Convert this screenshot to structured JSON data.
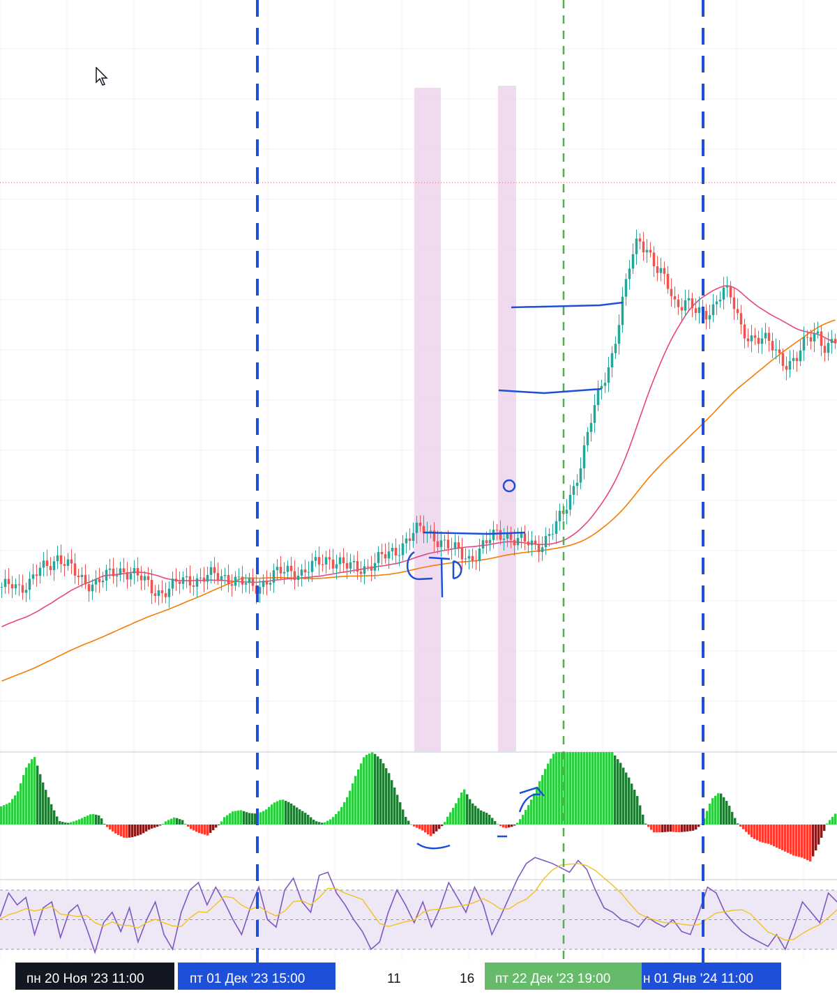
{
  "chart_data": {
    "type": "candlestick",
    "panes": [
      "price",
      "histogram",
      "rsi"
    ],
    "x_axis": {
      "time_labels": [
        {
          "text": "пн 20 Ноя '23    11:00",
          "style": "dark"
        },
        {
          "text": "пт 01 Дек '23    15:00",
          "style": "blue"
        },
        {
          "text": "пт 22 Дек '23    19:00",
          "style": "green"
        },
        {
          "text": "н 01 Янв '24    11:00",
          "style": "blue"
        }
      ],
      "ticks": [
        "11",
        "16"
      ]
    },
    "price_series": {
      "close_shape": [
        0.34,
        0.4,
        0.37,
        0.38,
        0.47,
        0.52,
        0.56,
        0.5,
        0.44,
        0.4,
        0.39,
        0.42,
        0.46,
        0.48,
        0.45,
        0.41,
        0.36,
        0.33,
        0.35,
        0.4,
        0.42,
        0.41,
        0.43,
        0.44,
        0.43,
        0.41,
        0.38,
        0.36,
        0.4,
        0.44,
        0.46,
        0.47,
        0.46,
        0.49,
        0.52,
        0.55,
        0.53,
        0.49,
        0.48,
        0.5,
        0.54,
        0.56,
        0.59,
        0.66,
        0.72,
        0.73,
        0.7,
        0.66,
        0.61,
        0.58,
        0.55,
        0.6,
        0.66,
        0.72,
        0.7,
        0.66,
        0.65,
        0.63,
        0.67,
        0.74,
        0.84,
        1.0,
        1.2,
        1.45,
        1.66,
        1.82,
        2.1,
        2.42,
        2.62,
        2.54,
        2.4,
        2.32,
        2.18,
        2.22,
        2.14,
        2.1,
        2.18,
        2.3,
        2.2,
        2.02,
        1.98,
        1.96,
        1.93,
        1.86,
        1.8,
        1.84,
        1.96,
        2.02,
        1.9,
        1.94
      ],
      "ma_fast_color": "#e8457e",
      "ma_slow_color": "#f57c00",
      "up_color": "#26a69a",
      "down_color": "#ef5350"
    },
    "histogram": {
      "values": [
        0.25,
        0.3,
        0.45,
        0.78,
        0.95,
        0.6,
        0.3,
        0.05,
        0.02,
        0.05,
        0.1,
        0.15,
        0.12,
        -0.1,
        -0.25,
        -0.35,
        -0.32,
        -0.25,
        -0.12,
        -0.05,
        0.05,
        0.1,
        0.06,
        -0.12,
        -0.22,
        -0.28,
        -0.08,
        0.1,
        0.18,
        0.2,
        0.16,
        0.15,
        0.2,
        0.3,
        0.35,
        0.3,
        0.22,
        0.15,
        0.05,
        0.02,
        0.08,
        0.2,
        0.4,
        0.7,
        0.95,
        1.0,
        0.9,
        0.7,
        0.4,
        0.1,
        -0.05,
        -0.15,
        -0.3,
        -0.12,
        0.1,
        0.28,
        0.5,
        0.3,
        0.2,
        0.15,
        0.02,
        -0.1,
        -0.05,
        0.1,
        0.3,
        0.55,
        0.8,
        1.0,
        1.0,
        1.0,
        1.0,
        1.0,
        1.0,
        1.0,
        1.0,
        0.85,
        0.65,
        0.4,
        0.02,
        -0.2,
        -0.2,
        -0.18,
        -0.2,
        -0.18,
        -0.15,
        0.05,
        0.35,
        0.45,
        0.3,
        0.05,
        -0.15,
        -0.35,
        -0.45,
        -0.5,
        -0.6,
        -0.7,
        -0.8,
        -0.85,
        -0.95,
        -0.5,
        0.02,
        0.15
      ],
      "pos_strong": "#2ecc40",
      "pos_weak": "#1e7d32",
      "neg_strong": "#ff3b30",
      "neg_weak": "#8b1a1a"
    },
    "rsi": {
      "values": [
        52,
        68,
        60,
        65,
        40,
        58,
        62,
        38,
        55,
        60,
        45,
        28,
        48,
        55,
        42,
        58,
        35,
        50,
        62,
        40,
        30,
        55,
        70,
        75,
        60,
        72,
        62,
        50,
        40,
        58,
        72,
        50,
        45,
        70,
        78,
        62,
        55,
        80,
        82,
        68,
        60,
        50,
        42,
        30,
        35,
        55,
        70,
        60,
        48,
        62,
        45,
        58,
        75,
        65,
        55,
        72,
        60,
        40,
        52,
        65,
        78,
        88,
        92,
        90,
        88,
        85,
        82,
        90,
        84,
        70,
        58,
        55,
        50,
        48,
        45,
        52,
        48,
        45,
        50,
        42,
        40,
        55,
        72,
        68,
        55,
        48,
        42,
        38,
        35,
        32,
        40,
        30,
        45,
        62,
        55,
        48,
        68,
        62
      ],
      "signal_color": "#f0c419",
      "line_color": "#7e57c2",
      "band_color": "#ede7f6"
    },
    "markers": {
      "blue_dashed": "#1d4ed8",
      "green_dashed": "#4caf50",
      "highlight": "#e6c6e8"
    },
    "annotations": [
      "СТD"
    ]
  }
}
